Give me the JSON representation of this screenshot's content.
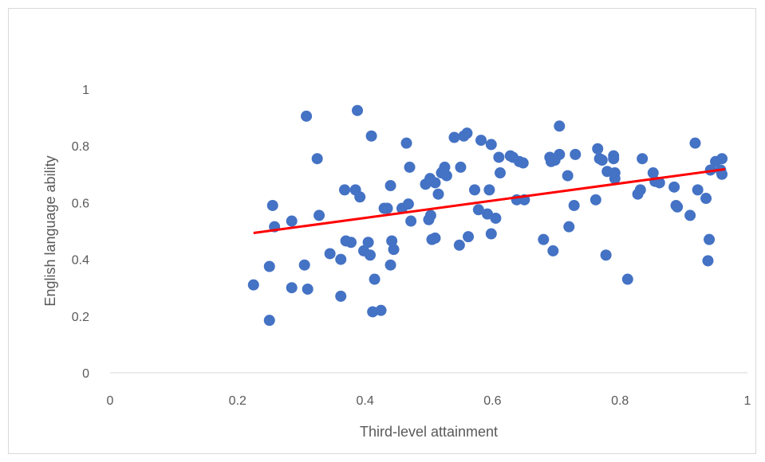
{
  "chart_data": {
    "type": "scatter",
    "xlabel": "Third-level attainment",
    "ylabel": "English language ability",
    "xlim": [
      0,
      1
    ],
    "ylim": [
      0,
      1
    ],
    "x_ticks": [
      "0",
      "0.2",
      "0.4",
      "0.6",
      "0.8",
      "1"
    ],
    "y_ticks": [
      "0",
      "0.2",
      "0.4",
      "0.6",
      "0.8",
      "1"
    ],
    "grid": false,
    "colors": {
      "points": "#4472C4",
      "trendline": "#FF0000",
      "axis": "#d9d9d9"
    },
    "trendline": {
      "type": "linear",
      "x": [
        0.225,
        0.965
      ],
      "y": [
        0.493,
        0.718
      ]
    },
    "series": [
      {
        "points": [
          [
            0.225,
            0.31
          ],
          [
            0.25,
            0.375
          ],
          [
            0.25,
            0.185
          ],
          [
            0.255,
            0.59
          ],
          [
            0.258,
            0.515
          ],
          [
            0.285,
            0.535
          ],
          [
            0.285,
            0.3
          ],
          [
            0.305,
            0.38
          ],
          [
            0.308,
            0.905
          ],
          [
            0.31,
            0.295
          ],
          [
            0.325,
            0.755
          ],
          [
            0.328,
            0.555
          ],
          [
            0.345,
            0.42
          ],
          [
            0.362,
            0.27
          ],
          [
            0.362,
            0.4
          ],
          [
            0.368,
            0.645
          ],
          [
            0.37,
            0.465
          ],
          [
            0.378,
            0.46
          ],
          [
            0.385,
            0.645
          ],
          [
            0.388,
            0.925
          ],
          [
            0.392,
            0.62
          ],
          [
            0.398,
            0.43
          ],
          [
            0.405,
            0.46
          ],
          [
            0.408,
            0.415
          ],
          [
            0.41,
            0.835
          ],
          [
            0.412,
            0.215
          ],
          [
            0.415,
            0.33
          ],
          [
            0.425,
            0.22
          ],
          [
            0.43,
            0.58
          ],
          [
            0.435,
            0.58
          ],
          [
            0.44,
            0.66
          ],
          [
            0.44,
            0.38
          ],
          [
            0.442,
            0.465
          ],
          [
            0.445,
            0.435
          ],
          [
            0.458,
            0.58
          ],
          [
            0.465,
            0.81
          ],
          [
            0.468,
            0.595
          ],
          [
            0.47,
            0.725
          ],
          [
            0.472,
            0.535
          ],
          [
            0.495,
            0.665
          ],
          [
            0.5,
            0.54
          ],
          [
            0.502,
            0.685
          ],
          [
            0.503,
            0.555
          ],
          [
            0.505,
            0.47
          ],
          [
            0.51,
            0.475
          ],
          [
            0.51,
            0.67
          ],
          [
            0.515,
            0.63
          ],
          [
            0.52,
            0.705
          ],
          [
            0.522,
            0.71
          ],
          [
            0.525,
            0.725
          ],
          [
            0.528,
            0.695
          ],
          [
            0.54,
            0.83
          ],
          [
            0.548,
            0.45
          ],
          [
            0.55,
            0.725
          ],
          [
            0.555,
            0.835
          ],
          [
            0.56,
            0.845
          ],
          [
            0.562,
            0.48
          ],
          [
            0.572,
            0.645
          ],
          [
            0.578,
            0.575
          ],
          [
            0.582,
            0.82
          ],
          [
            0.592,
            0.56
          ],
          [
            0.595,
            0.645
          ],
          [
            0.598,
            0.805
          ],
          [
            0.598,
            0.49
          ],
          [
            0.605,
            0.545
          ],
          [
            0.61,
            0.76
          ],
          [
            0.612,
            0.705
          ],
          [
            0.628,
            0.765
          ],
          [
            0.632,
            0.76
          ],
          [
            0.638,
            0.61
          ],
          [
            0.642,
            0.745
          ],
          [
            0.648,
            0.74
          ],
          [
            0.65,
            0.61
          ],
          [
            0.68,
            0.47
          ],
          [
            0.69,
            0.76
          ],
          [
            0.692,
            0.745
          ],
          [
            0.695,
            0.43
          ],
          [
            0.698,
            0.75
          ],
          [
            0.705,
            0.87
          ],
          [
            0.705,
            0.77
          ],
          [
            0.718,
            0.695
          ],
          [
            0.72,
            0.515
          ],
          [
            0.728,
            0.59
          ],
          [
            0.73,
            0.77
          ],
          [
            0.762,
            0.61
          ],
          [
            0.765,
            0.79
          ],
          [
            0.768,
            0.755
          ],
          [
            0.772,
            0.75
          ],
          [
            0.778,
            0.415
          ],
          [
            0.78,
            0.71
          ],
          [
            0.79,
            0.765
          ],
          [
            0.79,
            0.755
          ],
          [
            0.792,
            0.705
          ],
          [
            0.792,
            0.685
          ],
          [
            0.812,
            0.33
          ],
          [
            0.828,
            0.63
          ],
          [
            0.832,
            0.645
          ],
          [
            0.835,
            0.755
          ],
          [
            0.852,
            0.705
          ],
          [
            0.855,
            0.675
          ],
          [
            0.862,
            0.67
          ],
          [
            0.885,
            0.655
          ],
          [
            0.888,
            0.59
          ],
          [
            0.89,
            0.585
          ],
          [
            0.91,
            0.555
          ],
          [
            0.918,
            0.81
          ],
          [
            0.922,
            0.645
          ],
          [
            0.935,
            0.615
          ],
          [
            0.938,
            0.395
          ],
          [
            0.94,
            0.47
          ],
          [
            0.942,
            0.715
          ],
          [
            0.95,
            0.745
          ],
          [
            0.958,
            0.715
          ],
          [
            0.96,
            0.755
          ],
          [
            0.96,
            0.7
          ]
        ]
      }
    ]
  }
}
